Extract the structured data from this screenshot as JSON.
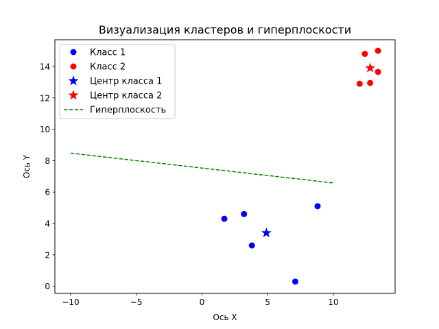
{
  "chart_data": {
    "type": "scatter",
    "title": "Визуализация кластеров и гиперплоскости",
    "xlabel": "Ось X",
    "ylabel": "Ось Y",
    "xlim": [
      -11.2,
      14.7
    ],
    "ylim": [
      -0.45,
      15.7
    ],
    "xticks": [
      -10,
      -5,
      0,
      5,
      10
    ],
    "yticks": [
      0,
      2,
      4,
      6,
      8,
      10,
      12,
      14
    ],
    "grid": false,
    "legend_position": "top-left",
    "series": [
      {
        "name": "Класс 1",
        "kind": "points",
        "marker": "circle",
        "color": "#0000ff",
        "points": [
          [
            1.7,
            4.3
          ],
          [
            3.2,
            4.6
          ],
          [
            3.8,
            2.6
          ],
          [
            7.1,
            0.3
          ],
          [
            8.8,
            5.1
          ]
        ]
      },
      {
        "name": "Класс 2",
        "kind": "points",
        "marker": "circle",
        "color": "#ff0000",
        "points": [
          [
            12.0,
            12.9
          ],
          [
            12.4,
            14.8
          ],
          [
            12.8,
            12.95
          ],
          [
            13.4,
            15.0
          ],
          [
            13.4,
            13.65
          ]
        ]
      },
      {
        "name": "Центр класса 1",
        "kind": "points",
        "marker": "star",
        "color": "#0000ff",
        "points": [
          [
            4.9,
            3.4
          ]
        ]
      },
      {
        "name": "Центр класса 2",
        "kind": "points",
        "marker": "star",
        "color": "#ff0000",
        "points": [
          [
            12.8,
            13.9
          ]
        ]
      },
      {
        "name": "Гиперплоскость",
        "kind": "line",
        "style": "dashed",
        "color": "#008000",
        "points": [
          [
            -10,
            8.48
          ],
          [
            10,
            6.58
          ]
        ]
      }
    ]
  }
}
